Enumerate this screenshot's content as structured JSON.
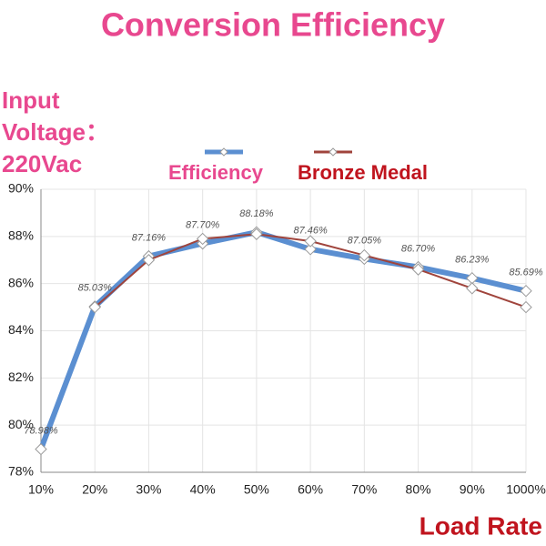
{
  "chart_data": {
    "type": "line",
    "title": "Conversion Efficiency",
    "annotations": [
      "Input",
      "Voltage：",
      "220Vac"
    ],
    "xlabel": "Load Rate",
    "categories": [
      "10%",
      "20%",
      "30%",
      "40%",
      "50%",
      "60%",
      "70%",
      "80%",
      "90%",
      "1000%"
    ],
    "series": [
      {
        "name": "Efficiency",
        "color": "#5b8fd1",
        "values": [
          78.98,
          85.03,
          87.16,
          87.7,
          88.18,
          87.46,
          87.05,
          86.7,
          86.23,
          85.69
        ],
        "value_labels": [
          "78.98%",
          "85.03%",
          "87.16%",
          "87.70%",
          "88.18%",
          "87.46%",
          "87.05%",
          "86.70%",
          "86.23%",
          "85.69%"
        ]
      },
      {
        "name": "Bronze Medal",
        "color": "#a0443c",
        "values": [
          null,
          85,
          87.0,
          87.9,
          88.1,
          87.8,
          87.2,
          86.6,
          85.8,
          85
        ]
      }
    ],
    "ylim": [
      78,
      90
    ],
    "yticks": [
      {
        "value": 78,
        "label": "78%"
      },
      {
        "value": 80,
        "label": "80%"
      },
      {
        "value": 82,
        "label": "82%"
      },
      {
        "value": 84,
        "label": "84%"
      },
      {
        "value": 86,
        "label": "86%"
      },
      {
        "value": 88,
        "label": "88%"
      },
      {
        "value": 90,
        "label": "90%"
      }
    ],
    "grid": true
  }
}
